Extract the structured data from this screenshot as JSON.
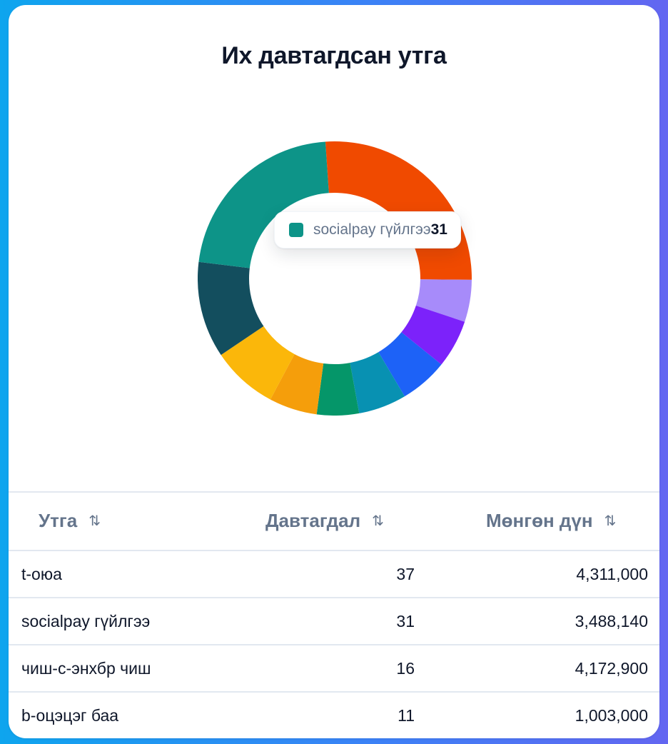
{
  "card": {
    "title": "Их давтагдсан утга"
  },
  "tooltip": {
    "label": "socialpay гүйлгээ",
    "value": "31",
    "color": "#0d9488"
  },
  "table": {
    "headers": [
      {
        "label": "Утга",
        "sort_icon": "⇅"
      },
      {
        "label": "Давтагдал",
        "sort_icon": "⇅"
      },
      {
        "label": "Мөнгөн дүн",
        "sort_icon": "⇅"
      }
    ],
    "rows": [
      {
        "name": "t-оюа",
        "count": "37",
        "amount": "4,311,000"
      },
      {
        "name": "socialpay гүйлгээ",
        "count": "31",
        "amount": "3,488,140"
      },
      {
        "name": "чиш-с-энхбр чиш",
        "count": "16",
        "amount": "4,172,900"
      },
      {
        "name": "b-оцэцэг баа",
        "count": "11",
        "amount": "1,003,000"
      }
    ]
  },
  "chart_data": {
    "type": "pie",
    "subtype": "donut",
    "title": "Их давтагдсан утга",
    "start_angle_deg": -3.9,
    "inner_radius_ratio": 0.625,
    "slices": [
      {
        "label": "t-оюа",
        "value": 37,
        "color": "#f04a00"
      },
      {
        "label": "(unlabeled)",
        "value": 7,
        "color": "#a78bfa"
      },
      {
        "label": "(unlabeled)",
        "value": 8,
        "color": "#7c22fa"
      },
      {
        "label": "(unlabeled)",
        "value": 8,
        "color": "#1d62f7"
      },
      {
        "label": "(unlabeled)",
        "value": 8,
        "color": "#0891b2"
      },
      {
        "label": "(unlabeled)",
        "value": 7,
        "color": "#059669"
      },
      {
        "label": "(unlabeled)",
        "value": 8,
        "color": "#f59e0b"
      },
      {
        "label": "b-оцэцэг баа",
        "value": 11,
        "color": "#fbb70a"
      },
      {
        "label": "чиш-с-энхбр чиш",
        "value": 16,
        "color": "#134e5e"
      },
      {
        "label": "socialpay гүйлгээ",
        "value": 31,
        "color": "#0d9488"
      }
    ],
    "active_tooltip": {
      "label": "socialpay гүйлгээ",
      "value": 31
    },
    "legend": "none"
  }
}
